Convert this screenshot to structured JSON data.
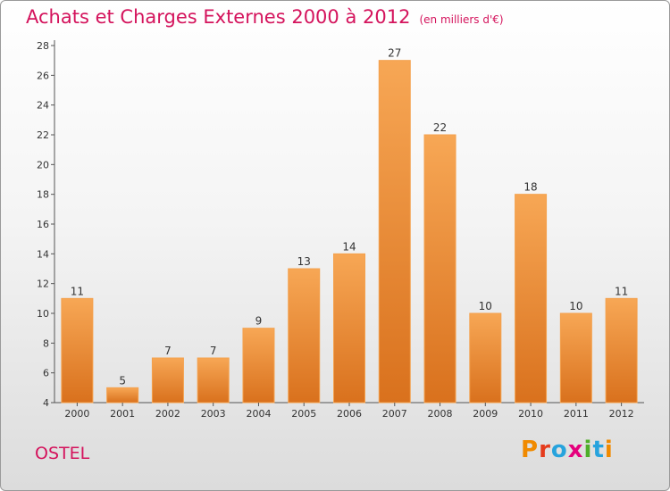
{
  "header": {
    "title": "Achats et Charges Externes 2000 à 2012",
    "unit": "(en milliers d'€)"
  },
  "footer": {
    "commune": "OSTEL",
    "logo_text": "Proxiti",
    "logo_colors": [
      "#f08a00",
      "#e53b1c",
      "#27a3dd",
      "#e5007d",
      "#4fae2a",
      "#27a3dd",
      "#f08a00"
    ]
  },
  "colors": {
    "accent": "#d4135c",
    "bar_light": "#f7a755",
    "bar_dark": "#d9711d"
  },
  "chart_data": {
    "type": "bar",
    "categories": [
      "2000",
      "2001",
      "2002",
      "2003",
      "2004",
      "2005",
      "2006",
      "2007",
      "2008",
      "2009",
      "2010",
      "2011",
      "2012"
    ],
    "values": [
      11,
      5,
      7,
      7,
      9,
      13,
      14,
      27,
      22,
      10,
      18,
      10,
      11
    ],
    "ylim": [
      4,
      28
    ],
    "yticks": [
      4,
      6,
      8,
      10,
      12,
      14,
      16,
      18,
      20,
      22,
      24,
      26,
      28
    ],
    "grid": false,
    "legend": "none"
  }
}
